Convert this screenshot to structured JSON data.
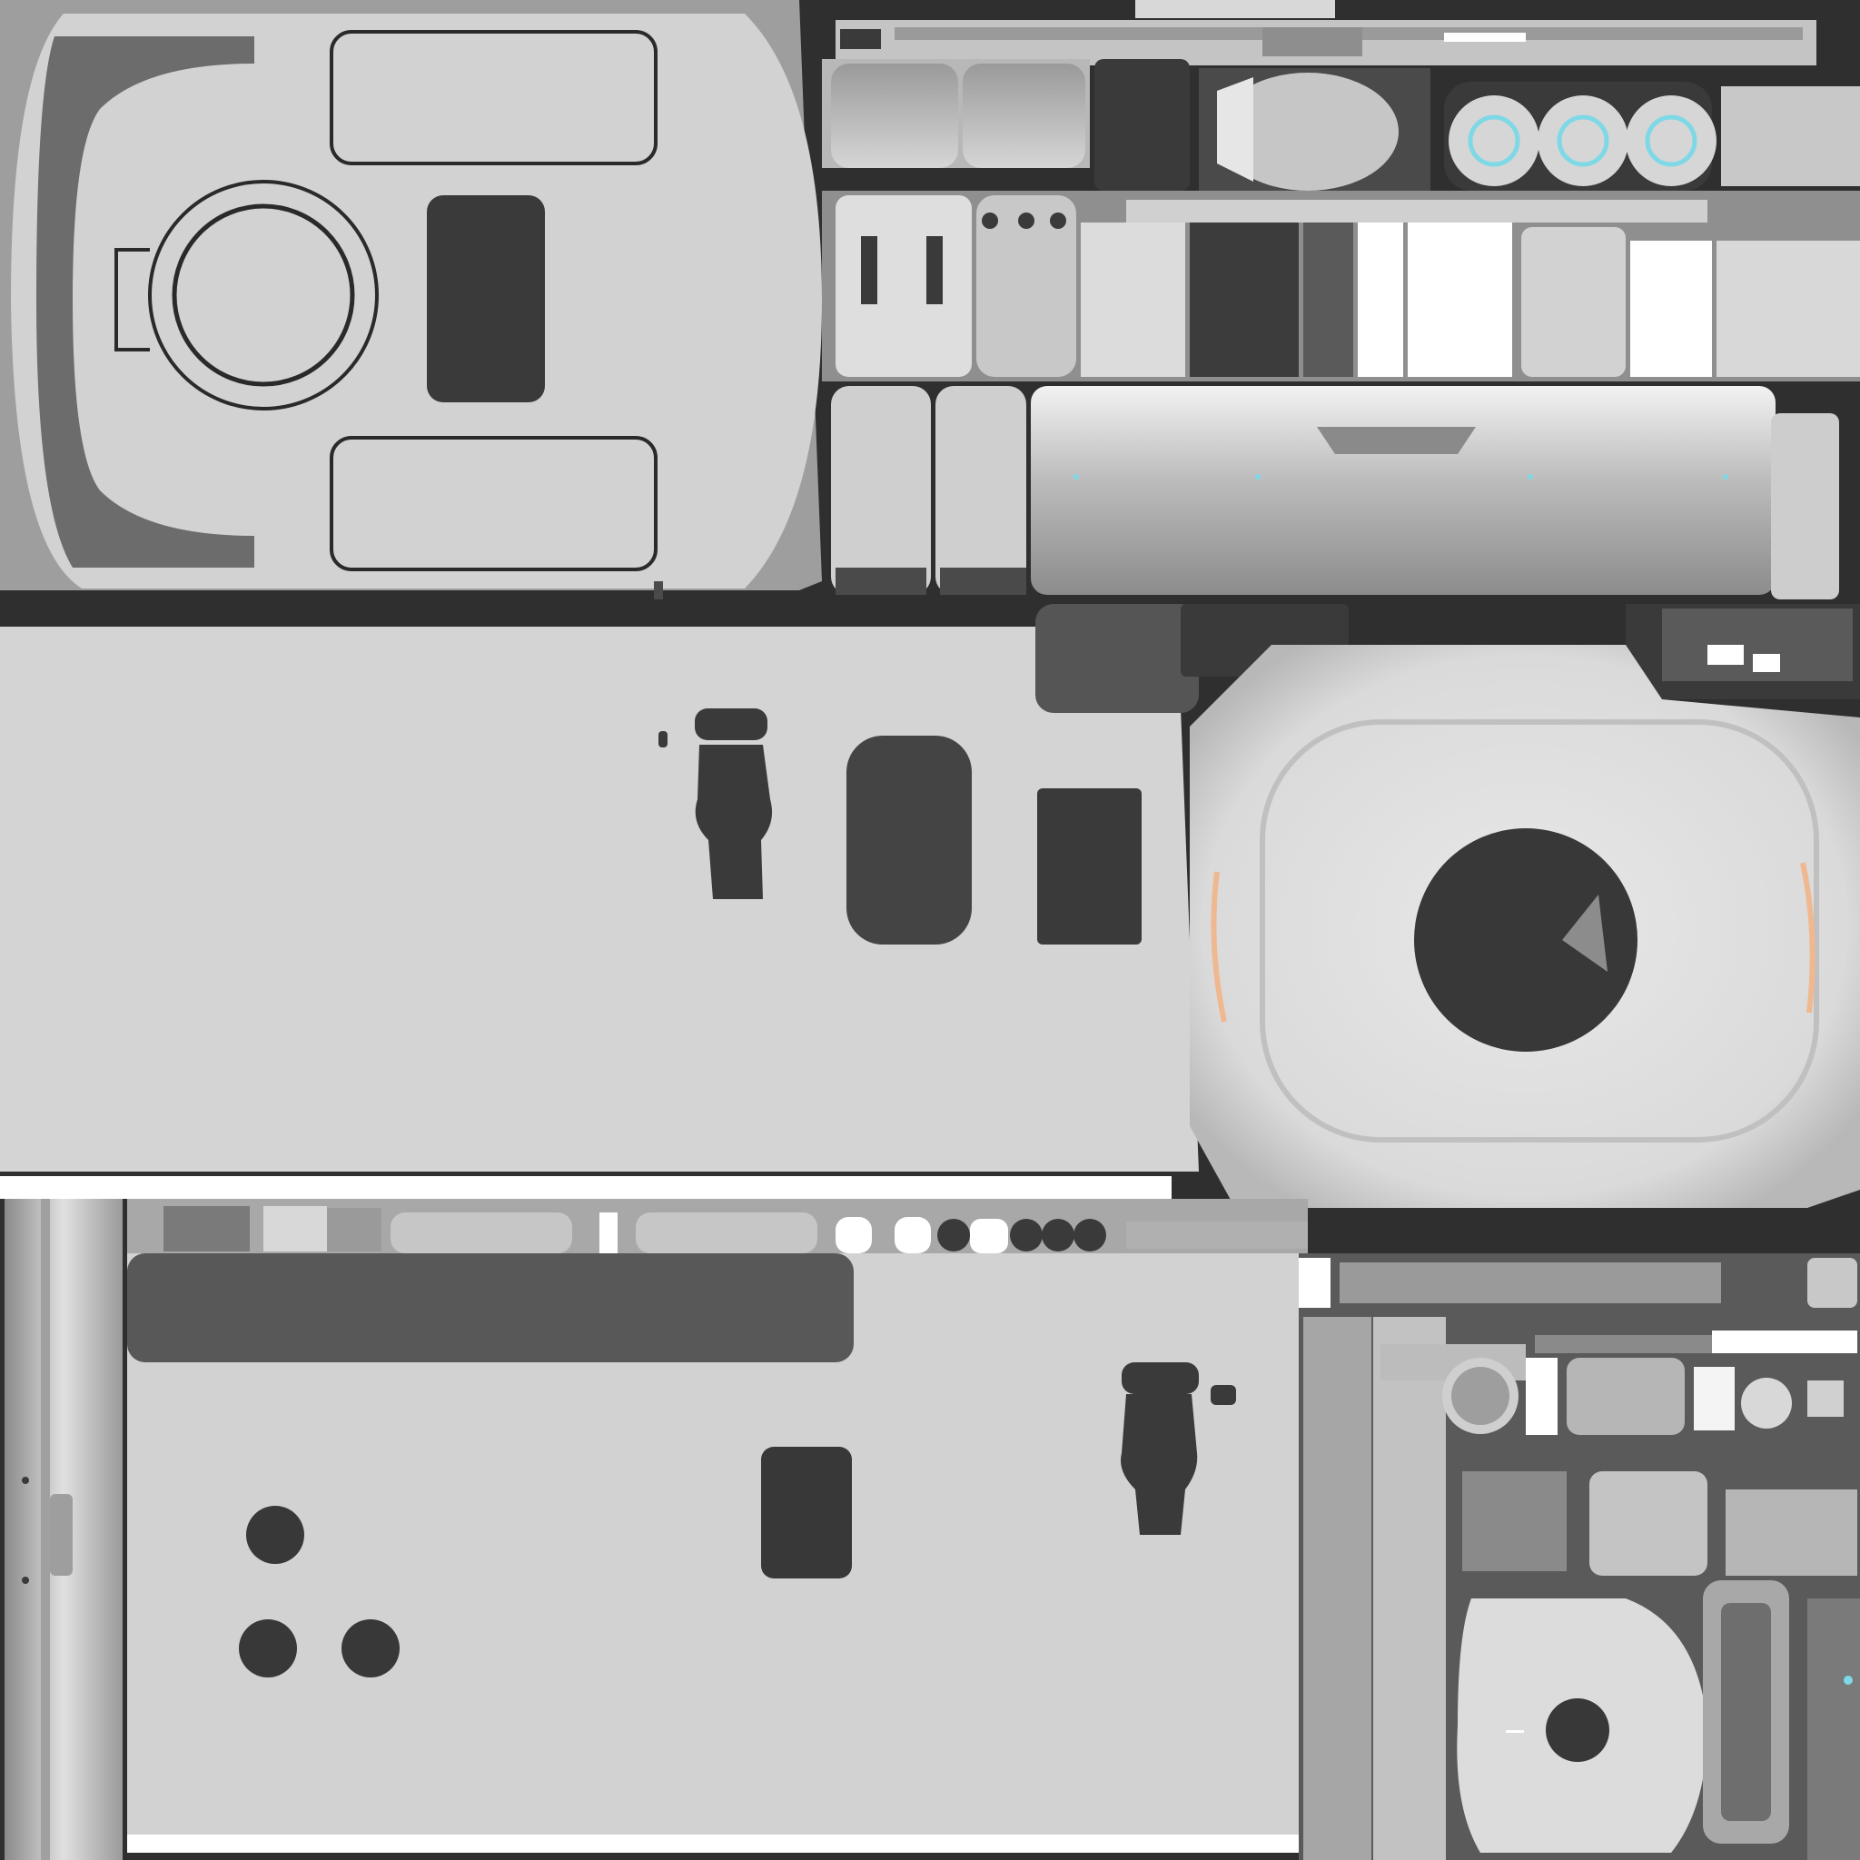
{
  "texture_atlas": {
    "theme": "grayscale baked texture sheet",
    "colors": {
      "background": "#2f2f2f",
      "panel_light": "#d8d8d8",
      "panel_mid": "#bdbdbd",
      "panel_dark": "#3a3a3a",
      "outline": "#2a2a2a",
      "accent_cyan": "#7fd8e6",
      "accent_orange": "#f0b890",
      "white": "#ffffff"
    },
    "islands": [
      "rounded-hull-top",
      "seat-strip",
      "pill-lights",
      "component-blocks",
      "long-tube",
      "floor-panel-large",
      "round-hatch-panel",
      "floor-panel-lower",
      "vertical-rail",
      "small-parts-cluster",
      "round-hatch-small"
    ]
  }
}
